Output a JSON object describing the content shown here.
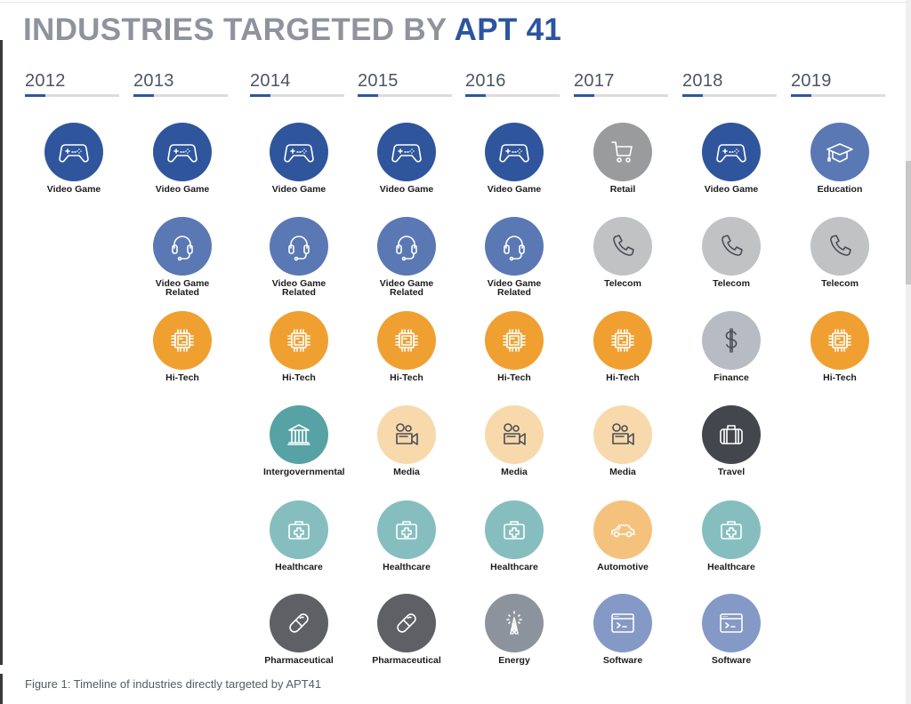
{
  "title": {
    "main": "INDUSTRIES TARGETED BY ",
    "accent": "APT 41"
  },
  "colors": {
    "video_game": "#2f559d",
    "video_game_related": "#5a78b4",
    "hi_tech": "#f0a031",
    "intergovernmental": "#56a2a4",
    "healthcare": "#86bec0",
    "media": "#f8d9ac",
    "pharmaceutical": "#5f6066",
    "energy": "#8d939d",
    "retail": "#9a9b9d",
    "telecom": "#c1c2c4",
    "automotive": "#f5c27e",
    "software": "#8599c6",
    "finance": "#b7bcc4",
    "travel": "#43464d",
    "education": "#5a78b4"
  },
  "years": [
    {
      "year": "2012",
      "progress": 0.22,
      "industries": [
        {
          "label": "Video Game",
          "icon": "gamepad-icon",
          "color_key": "video_game"
        }
      ]
    },
    {
      "year": "2013",
      "progress": 0.22,
      "industries": [
        {
          "label": "Video Game",
          "icon": "gamepad-icon",
          "color_key": "video_game"
        },
        {
          "label": "Video Game Related",
          "icon": "headset-icon",
          "color_key": "video_game_related"
        },
        {
          "label": "Hi-Tech",
          "icon": "chip-icon",
          "color_key": "hi_tech"
        }
      ]
    },
    {
      "year": "2014",
      "progress": 0.22,
      "industries": [
        {
          "label": "Video Game",
          "icon": "gamepad-icon",
          "color_key": "video_game"
        },
        {
          "label": "Video Game Related",
          "icon": "headset-icon",
          "color_key": "video_game_related"
        },
        {
          "label": "Hi-Tech",
          "icon": "chip-icon",
          "color_key": "hi_tech"
        },
        {
          "label": "Intergovernmental",
          "icon": "government-building-icon",
          "color_key": "intergovernmental"
        },
        {
          "label": "Healthcare",
          "icon": "medical-kit-icon",
          "color_key": "healthcare"
        },
        {
          "label": "Pharmaceutical",
          "icon": "pill-icon",
          "color_key": "pharmaceutical"
        }
      ]
    },
    {
      "year": "2015",
      "progress": 0.22,
      "industries": [
        {
          "label": "Video Game",
          "icon": "gamepad-icon",
          "color_key": "video_game"
        },
        {
          "label": "Video Game Related",
          "icon": "headset-icon",
          "color_key": "video_game_related"
        },
        {
          "label": "Hi-Tech",
          "icon": "chip-icon",
          "color_key": "hi_tech"
        },
        {
          "label": "Media",
          "icon": "video-camera-icon",
          "color_key": "media"
        },
        {
          "label": "Healthcare",
          "icon": "medical-kit-icon",
          "color_key": "healthcare"
        },
        {
          "label": "Pharmaceutical",
          "icon": "pill-icon",
          "color_key": "pharmaceutical"
        }
      ]
    },
    {
      "year": "2016",
      "progress": 0.22,
      "industries": [
        {
          "label": "Video Game",
          "icon": "gamepad-icon",
          "color_key": "video_game"
        },
        {
          "label": "Video Game Related",
          "icon": "headset-icon",
          "color_key": "video_game_related"
        },
        {
          "label": "Hi-Tech",
          "icon": "chip-icon",
          "color_key": "hi_tech"
        },
        {
          "label": "Media",
          "icon": "video-camera-icon",
          "color_key": "media"
        },
        {
          "label": "Healthcare",
          "icon": "medical-kit-icon",
          "color_key": "healthcare"
        },
        {
          "label": "Energy",
          "icon": "radio-tower-icon",
          "color_key": "energy"
        }
      ]
    },
    {
      "year": "2017",
      "progress": 0.22,
      "industries": [
        {
          "label": "Retail",
          "icon": "shopping-cart-icon",
          "color_key": "retail"
        },
        {
          "label": "Telecom",
          "icon": "phone-icon",
          "color_key": "telecom"
        },
        {
          "label": "Hi-Tech",
          "icon": "chip-icon",
          "color_key": "hi_tech"
        },
        {
          "label": "Media",
          "icon": "video-camera-icon",
          "color_key": "media"
        },
        {
          "label": "Automotive",
          "icon": "car-icon",
          "color_key": "automotive"
        },
        {
          "label": "Software",
          "icon": "terminal-window-icon",
          "color_key": "software"
        }
      ]
    },
    {
      "year": "2018",
      "progress": 0.22,
      "industries": [
        {
          "label": "Video Game",
          "icon": "gamepad-icon",
          "color_key": "video_game"
        },
        {
          "label": "Telecom",
          "icon": "phone-icon",
          "color_key": "telecom"
        },
        {
          "label": "Finance",
          "icon": "dollar-icon",
          "color_key": "finance"
        },
        {
          "label": "Travel",
          "icon": "suitcase-icon",
          "color_key": "travel"
        },
        {
          "label": "Healthcare",
          "icon": "medical-kit-icon",
          "color_key": "healthcare"
        },
        {
          "label": "Software",
          "icon": "terminal-window-icon",
          "color_key": "software"
        }
      ]
    },
    {
      "year": "2019",
      "progress": 0.22,
      "industries": [
        {
          "label": "Education",
          "icon": "graduation-cap-icon",
          "color_key": "education"
        },
        {
          "label": "Telecom",
          "icon": "phone-icon",
          "color_key": "telecom"
        },
        {
          "label": "Hi-Tech",
          "icon": "chip-icon",
          "color_key": "hi_tech"
        }
      ]
    }
  ],
  "caption": "Figure 1: Timeline of industries directly targeted by APT41"
}
